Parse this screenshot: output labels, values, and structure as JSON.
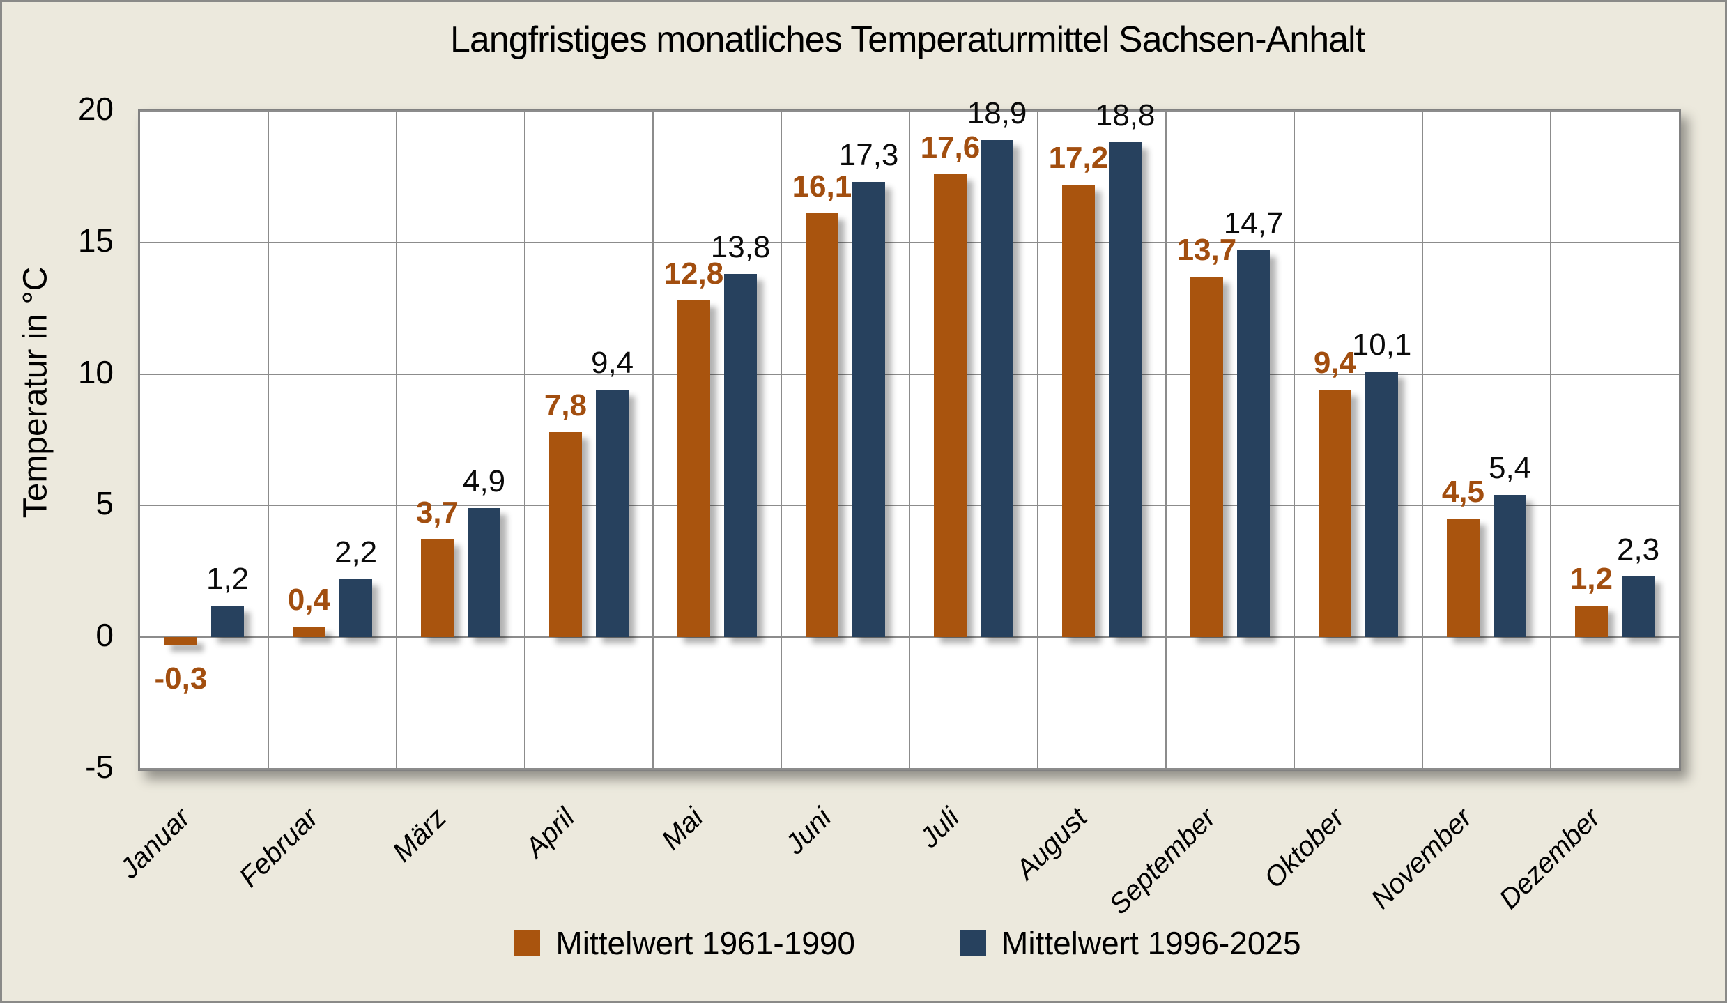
{
  "chart_data": {
    "type": "bar",
    "title": "Langfristiges monatliches Temperaturmittel Sachsen-Anhalt",
    "ylabel": "Temperatur in °C",
    "ylim": [
      -5,
      20
    ],
    "grid": true,
    "legend_position": "bottom",
    "categories": [
      "Januar",
      "Februar",
      "März",
      "April",
      "Mai",
      "Juni",
      "Juli",
      "August",
      "September",
      "Oktober",
      "November",
      "Dezember"
    ],
    "yticks": [
      {
        "value": 20,
        "label": "20"
      },
      {
        "value": 15,
        "label": "15"
      },
      {
        "value": 10,
        "label": "10"
      },
      {
        "value": 5,
        "label": "5"
      },
      {
        "value": 0,
        "label": "0"
      },
      {
        "value": -5,
        "label": "-5"
      }
    ],
    "series": [
      {
        "name": "Mittelwert 1961-1990",
        "color": "#a9540e",
        "label_color": "#a24e0f",
        "values": [
          -0.3,
          0.4,
          3.7,
          7.8,
          12.8,
          16.1,
          17.6,
          17.2,
          13.7,
          9.4,
          4.5,
          1.2
        ],
        "value_labels": [
          "-0,3",
          "0,4",
          "3,7",
          "7,8",
          "12,8",
          "16,1",
          "17,6",
          "17,2",
          "13,7",
          "9,4",
          "4,5",
          "1,2"
        ]
      },
      {
        "name": "Mittelwert 1996-2025",
        "color": "#27415e",
        "label_color": "#0b0b0b",
        "values": [
          1.2,
          2.2,
          4.9,
          9.4,
          13.8,
          17.3,
          18.9,
          18.8,
          14.7,
          10.1,
          5.4,
          2.3
        ],
        "value_labels": [
          "1,2",
          "2,2",
          "4,9",
          "9,4",
          "13,8",
          "17,3",
          "18,9",
          "18,8",
          "14,7",
          "10,1",
          "5,4",
          "2,3"
        ]
      }
    ]
  },
  "colors": {
    "background": "#ece9dd",
    "plot_background": "#ffffff",
    "gridline": "#8c8c8c",
    "outer_border": "#8a8a88",
    "series_1961_1990": "#a9540e",
    "series_1996_2025": "#27415e"
  }
}
